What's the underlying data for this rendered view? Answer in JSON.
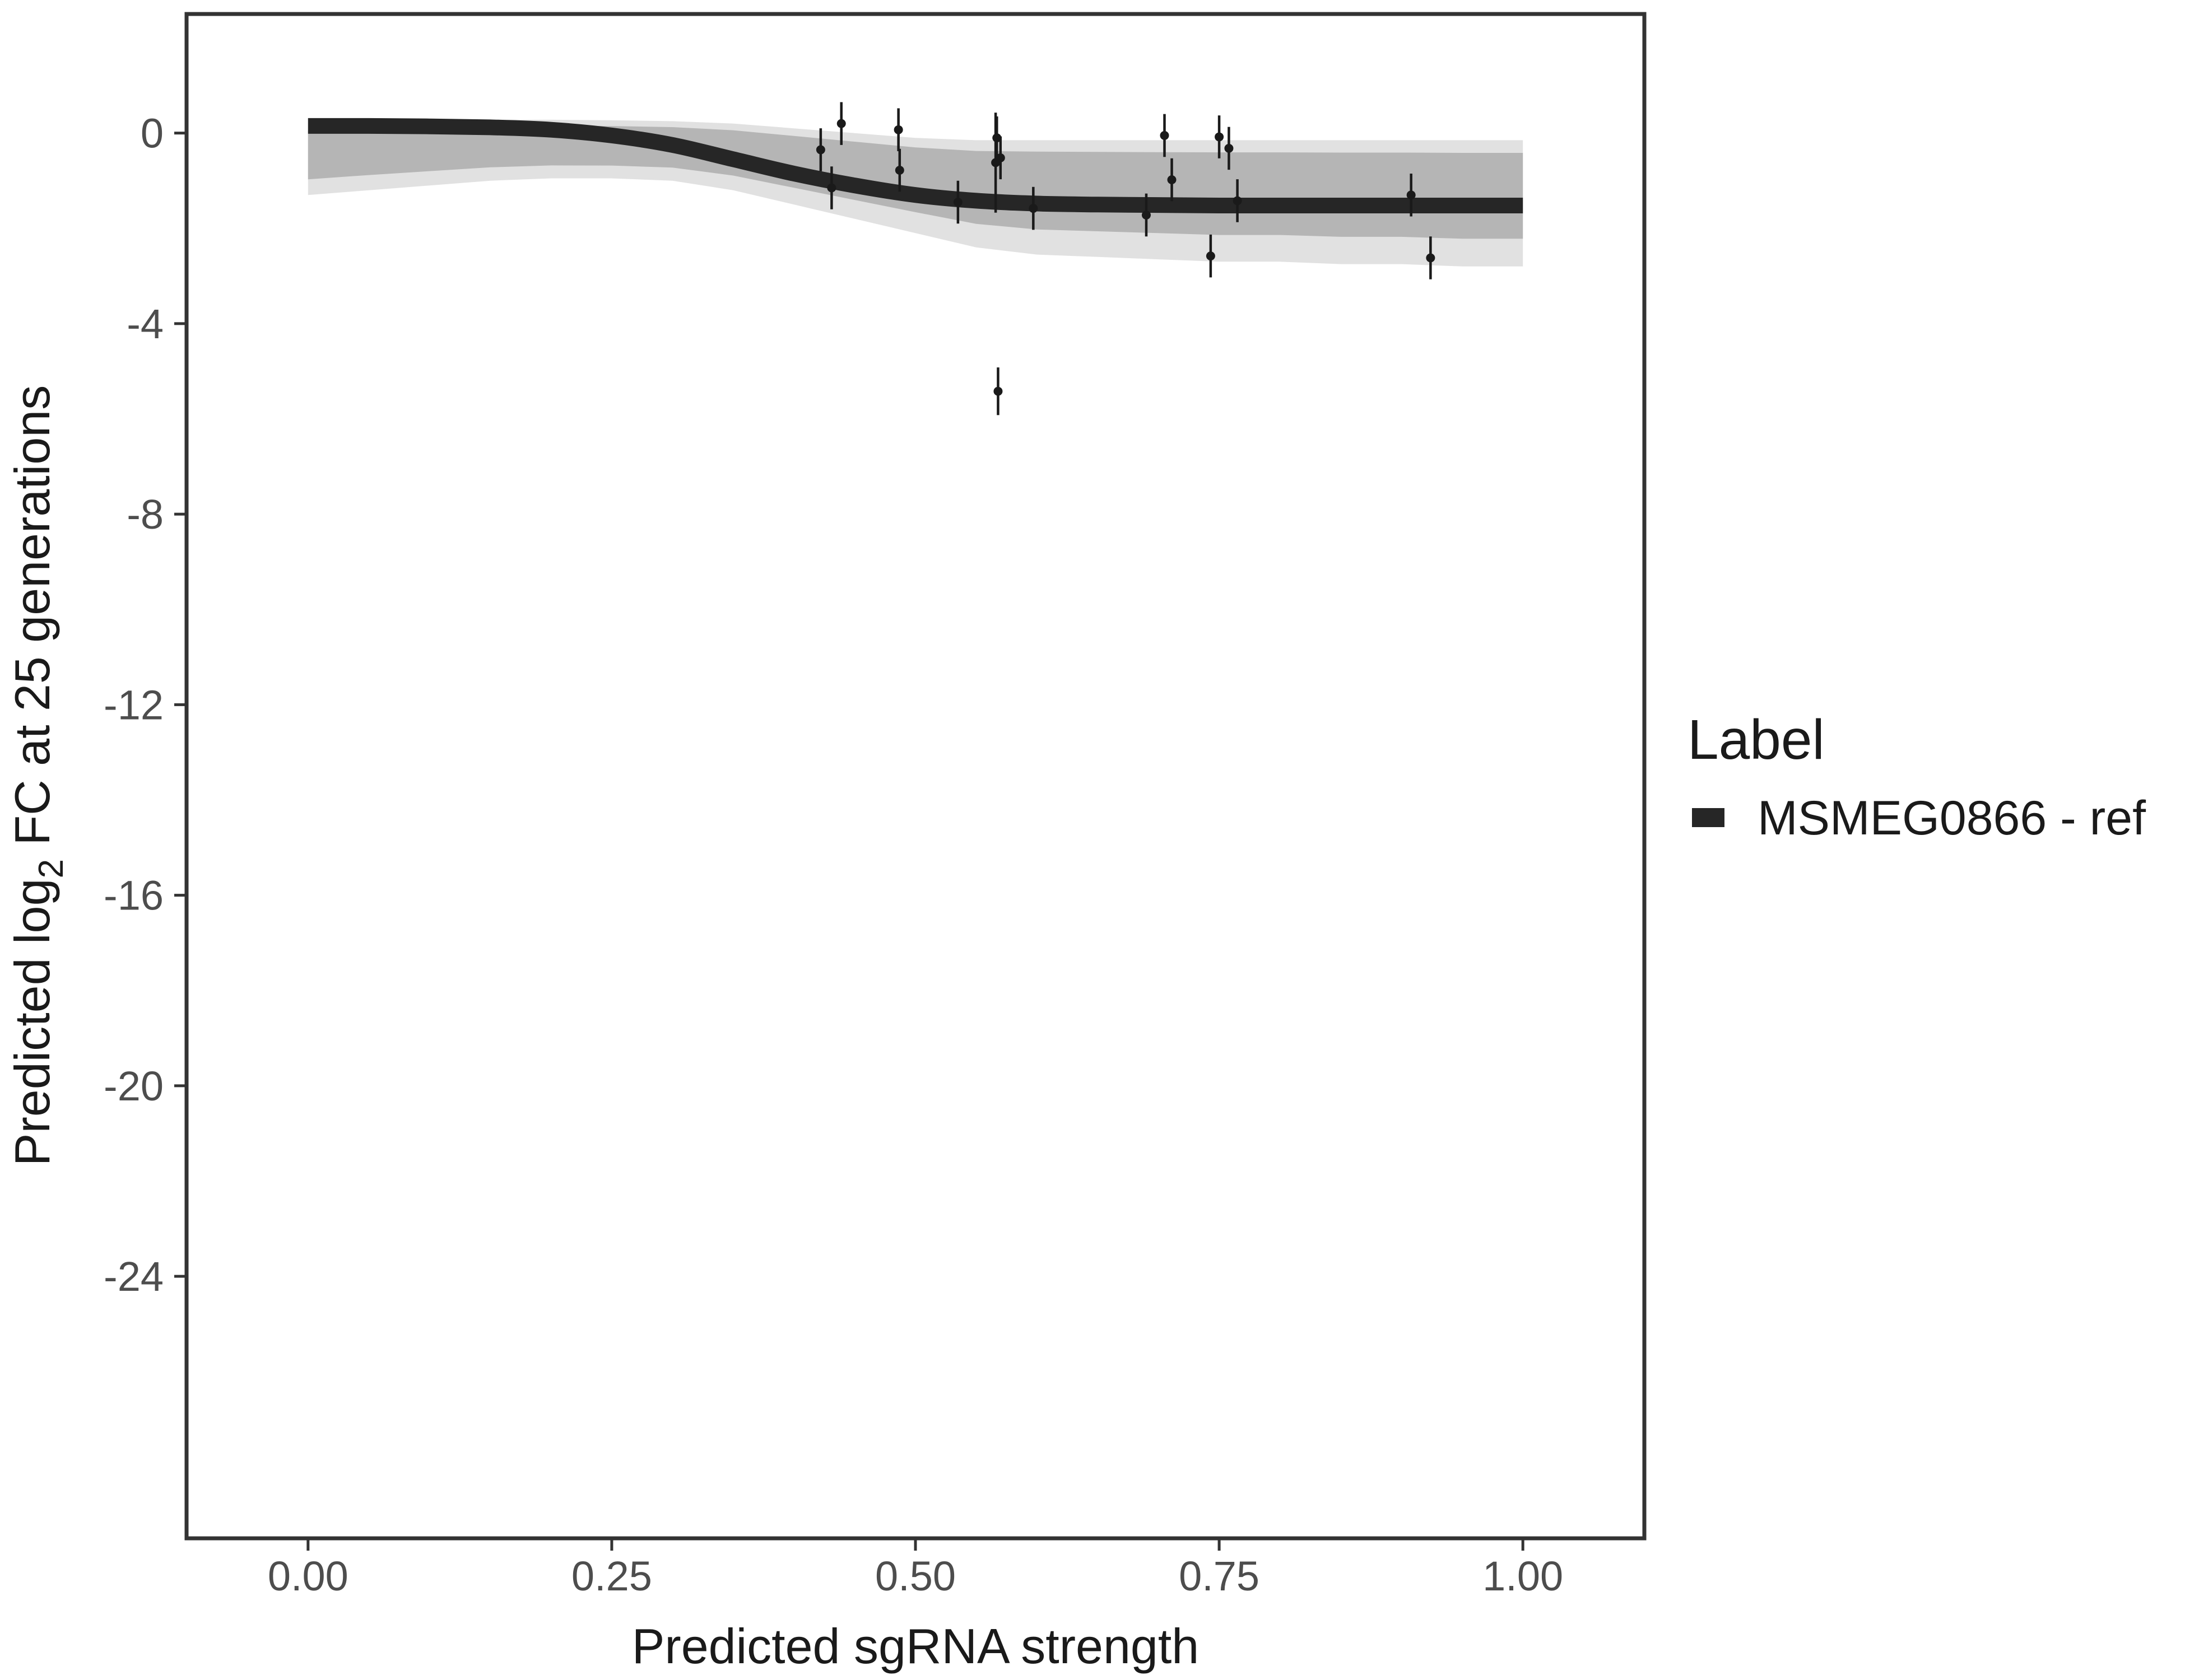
{
  "chart_data": {
    "type": "line",
    "xlabel": "Predicted sgRNA strength",
    "ylabel": {
      "prefix": "Predicted  log",
      "subscript": "2",
      "suffix": " FC at 25 generations"
    },
    "xlim": [
      -0.1,
      1.1
    ],
    "ylim": [
      -29.5,
      2.5
    ],
    "x_ticks": [
      0.0,
      0.25,
      0.5,
      0.75,
      1.0
    ],
    "x_tick_labels": [
      "0.00",
      "0.25",
      "0.50",
      "0.75",
      "1.00"
    ],
    "y_ticks": [
      0,
      -4,
      -8,
      -12,
      -16,
      -20,
      -24
    ],
    "y_tick_labels": [
      "0",
      "-4",
      "-8",
      "-12",
      "-16",
      "-20",
      "-24"
    ],
    "grid": false,
    "legend": {
      "title": "Label",
      "position": "right",
      "entries": [
        "MSMEG0866 - ref"
      ]
    },
    "series": [
      {
        "name": "MSMEG0866 - ref",
        "color": "#262626",
        "fit_curve": {
          "x": [
            0.0,
            0.05,
            0.1,
            0.15,
            0.2,
            0.25,
            0.3,
            0.35,
            0.4,
            0.45,
            0.5,
            0.55,
            0.6,
            0.65,
            0.7,
            0.75,
            0.8,
            0.85,
            0.9,
            0.95,
            1.0
          ],
          "y": [
            0.15,
            0.15,
            0.14,
            0.12,
            0.07,
            -0.05,
            -0.25,
            -0.55,
            -0.85,
            -1.1,
            -1.3,
            -1.42,
            -1.48,
            -1.5,
            -1.51,
            -1.52,
            -1.52,
            -1.52,
            -1.52,
            -1.52,
            -1.52
          ]
        },
        "posterior_band": {
          "x": [
            0.0,
            0.05,
            0.1,
            0.15,
            0.2,
            0.25,
            0.3,
            0.35,
            0.4,
            0.45,
            0.5,
            0.55,
            0.6,
            0.65,
            0.7,
            0.75,
            0.8,
            0.85,
            0.9,
            0.95,
            1.0
          ],
          "upper": [
            0.2,
            0.25,
            0.27,
            0.28,
            0.28,
            0.27,
            0.25,
            0.2,
            0.1,
            0.0,
            -0.1,
            -0.15,
            -0.15,
            -0.15,
            -0.15,
            -0.15,
            -0.15,
            -0.15,
            -0.15,
            -0.15,
            -0.15
          ],
          "lower": [
            -1.3,
            -1.2,
            -1.1,
            -1.0,
            -0.95,
            -0.95,
            -1.0,
            -1.2,
            -1.5,
            -1.8,
            -2.1,
            -2.4,
            -2.55,
            -2.6,
            -2.65,
            -2.7,
            -2.7,
            -2.75,
            -2.75,
            -2.8,
            -2.8
          ]
        },
        "points": [
          {
            "x": 0.422,
            "y": -0.35,
            "err": 0.45
          },
          {
            "x": 0.431,
            "y": -1.15,
            "err": 0.45
          },
          {
            "x": 0.439,
            "y": 0.2,
            "err": 0.45
          },
          {
            "x": 0.486,
            "y": 0.07,
            "err": 0.45
          },
          {
            "x": 0.487,
            "y": -0.78,
            "err": 0.45
          },
          {
            "x": 0.535,
            "y": -1.45,
            "err": 0.45
          },
          {
            "x": 0.566,
            "y": -0.62,
            "err": 1.05
          },
          {
            "x": 0.567,
            "y": -0.1,
            "err": 0.45
          },
          {
            "x": 0.568,
            "y": -5.42,
            "err": 0.5
          },
          {
            "x": 0.57,
            "y": -0.52,
            "err": 0.45
          },
          {
            "x": 0.597,
            "y": -1.58,
            "err": 0.45
          },
          {
            "x": 0.69,
            "y": -1.72,
            "err": 0.45
          },
          {
            "x": 0.705,
            "y": -0.05,
            "err": 0.45
          },
          {
            "x": 0.711,
            "y": -0.98,
            "err": 0.45
          },
          {
            "x": 0.743,
            "y": -2.58,
            "err": 0.45
          },
          {
            "x": 0.75,
            "y": -0.08,
            "err": 0.45
          },
          {
            "x": 0.758,
            "y": -0.32,
            "err": 0.45
          },
          {
            "x": 0.765,
            "y": -1.42,
            "err": 0.45
          },
          {
            "x": 0.908,
            "y": -1.3,
            "err": 0.45
          },
          {
            "x": 0.924,
            "y": -2.62,
            "err": 0.45
          }
        ]
      }
    ]
  }
}
